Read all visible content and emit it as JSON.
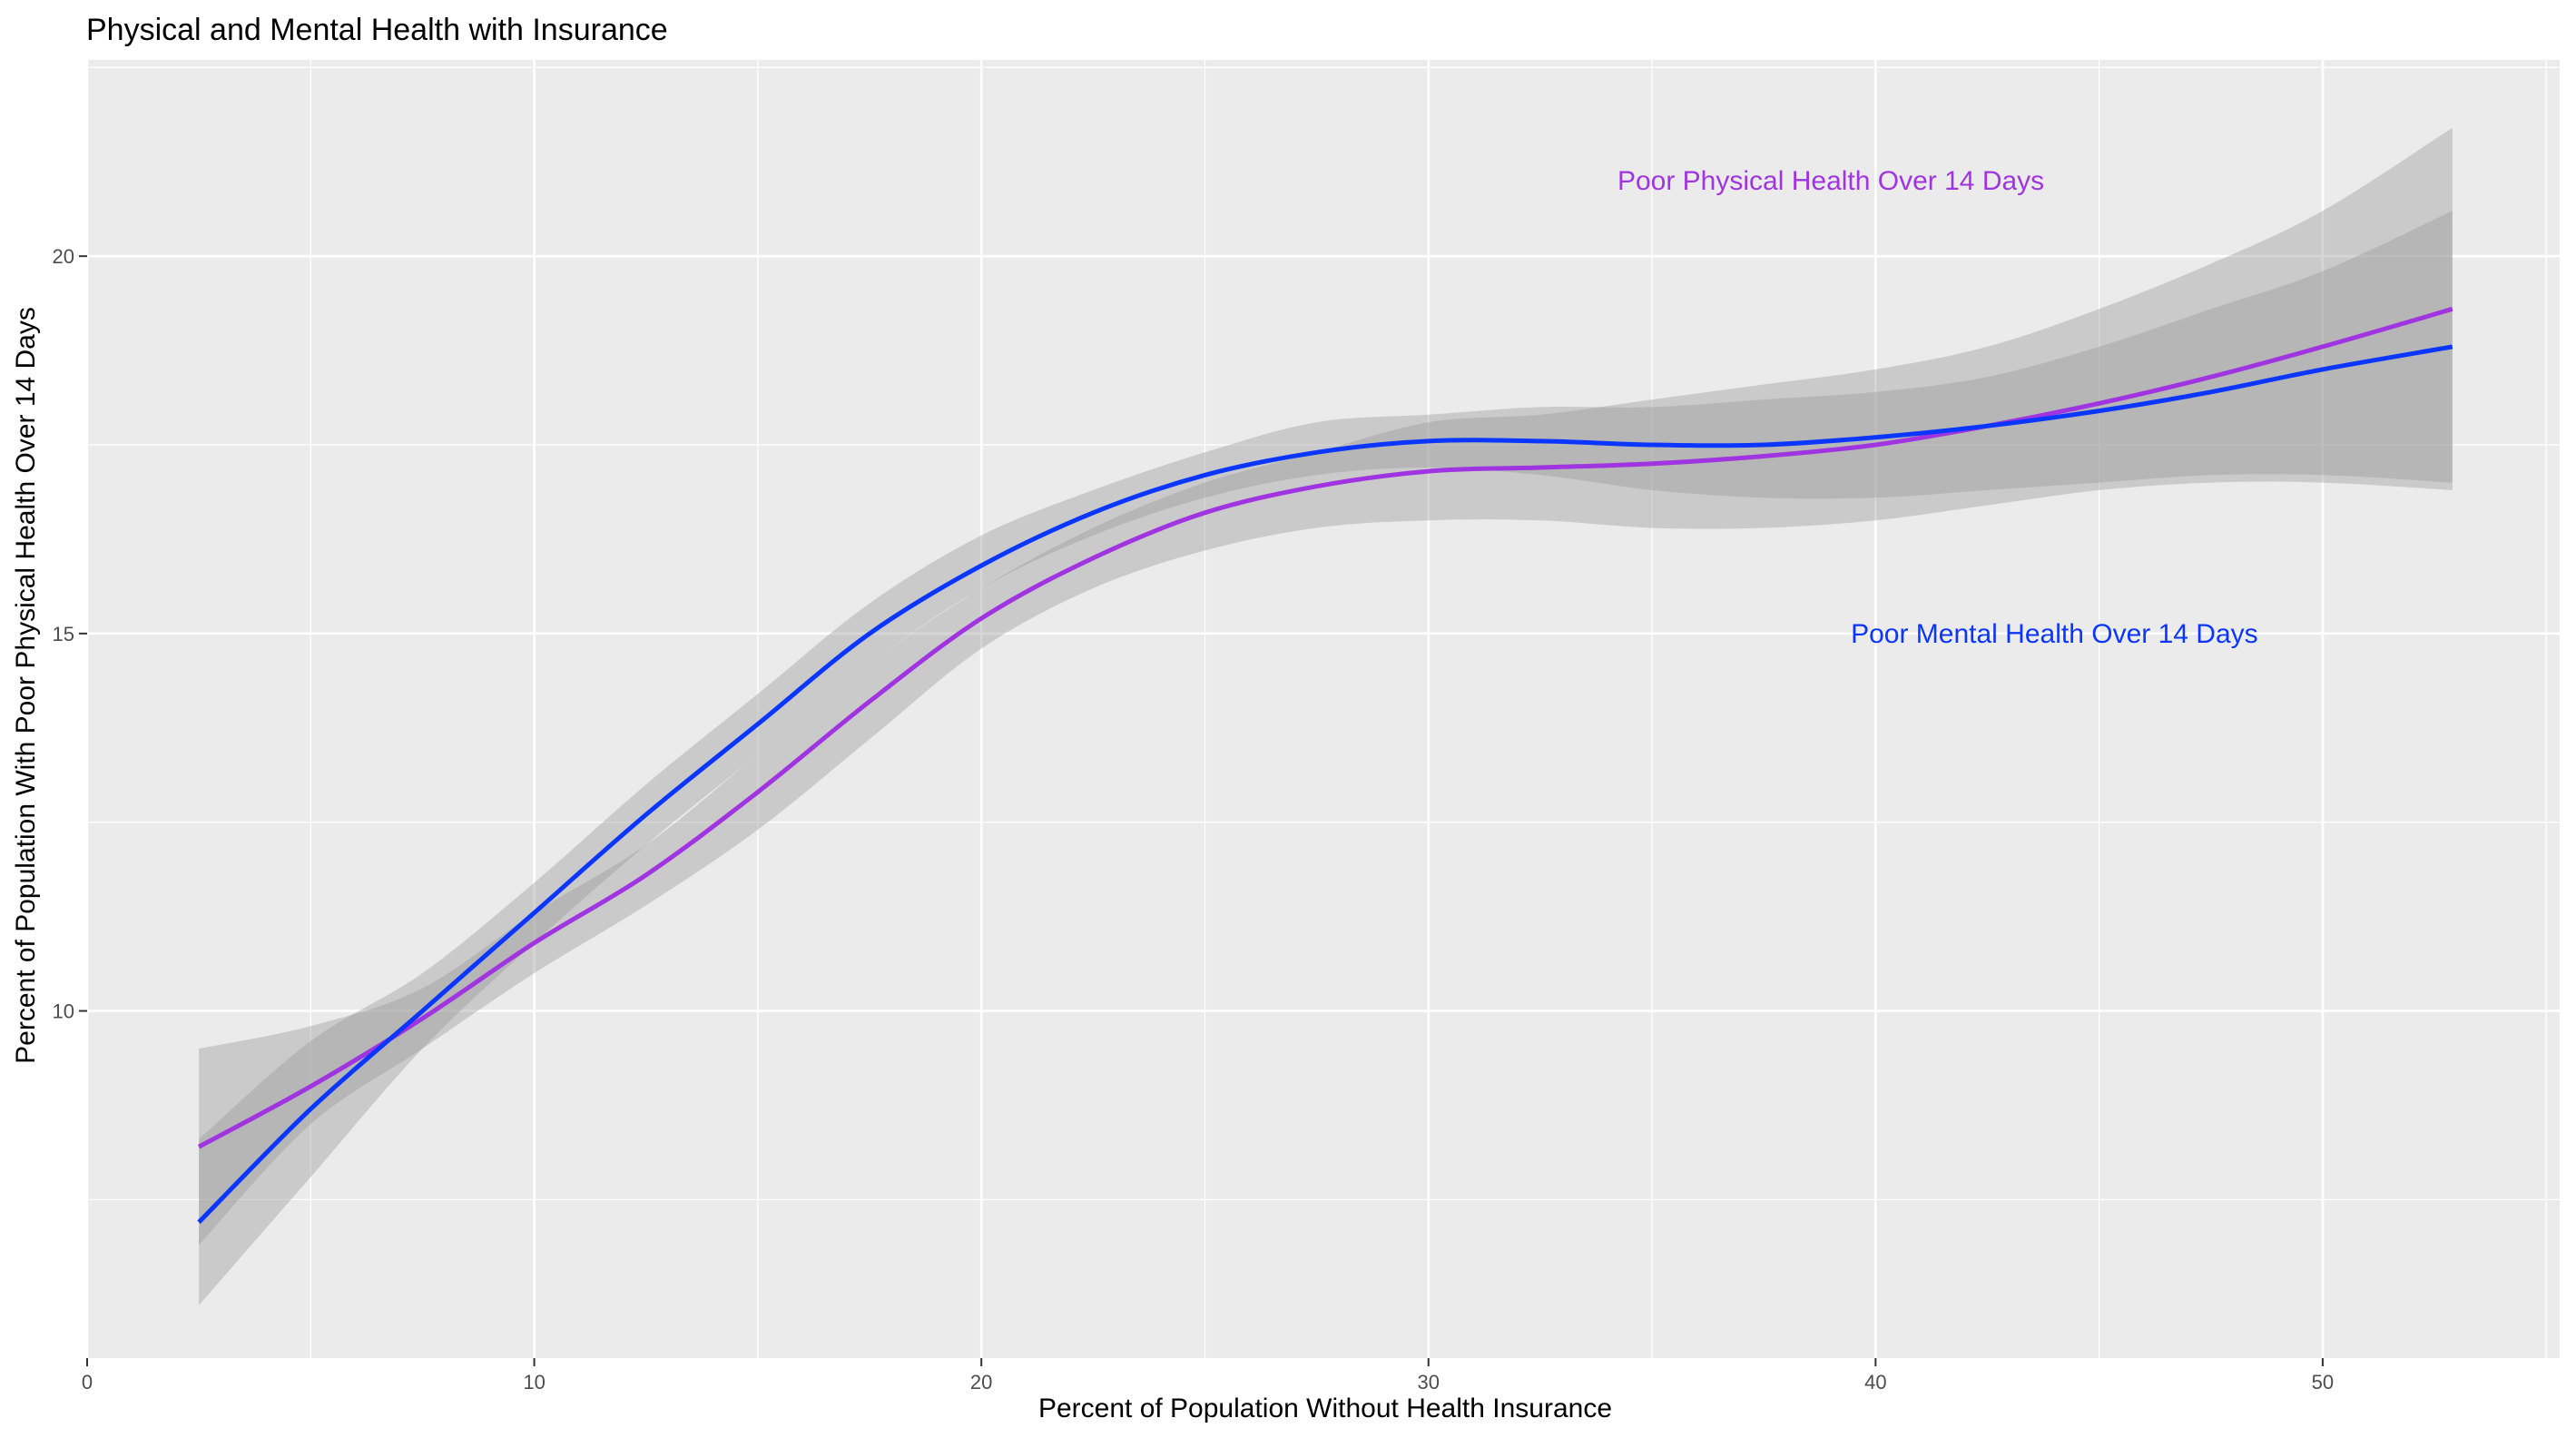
{
  "chart_data": {
    "type": "line",
    "title": "Physical and Mental Health with Insurance",
    "xlabel": "Percent of Population Without Health Insurance",
    "ylabel": "Percent of Population With Poor Physical Health Over 14 Days",
    "xlim": [
      0,
      55.3
    ],
    "ylim": [
      5.4,
      22.6
    ],
    "x_ticks": [
      0,
      10,
      20,
      30,
      40,
      50
    ],
    "y_ticks": [
      10,
      15,
      20
    ],
    "grid": true,
    "legend": "none",
    "colors": {
      "panel": "#ebebeb",
      "grid": "#ffffff",
      "ribbon": "#999999",
      "physical": "#a034e0",
      "mental": "#0a36ff"
    },
    "annotations": [
      {
        "text": "Poor Physical Health Over 14 Days",
        "x": 39,
        "y": 21.0,
        "series": "physical"
      },
      {
        "text": "Poor Mental Health Over 14 Days",
        "x": 44,
        "y": 15.0,
        "series": "mental"
      }
    ],
    "series": [
      {
        "id": "physical",
        "color": "#a034e0",
        "x": [
          2.5,
          5,
          7.5,
          10,
          12.5,
          15,
          17.5,
          20,
          22.5,
          25,
          27.5,
          30,
          32.5,
          35,
          37.5,
          40,
          42.5,
          45,
          47.5,
          50,
          52.9
        ],
        "y": [
          8.2,
          9.0,
          9.9,
          10.9,
          11.8,
          12.9,
          14.1,
          15.2,
          16.0,
          16.6,
          16.95,
          17.15,
          17.2,
          17.25,
          17.35,
          17.5,
          17.75,
          18.05,
          18.4,
          18.8,
          19.3
        ],
        "lower": [
          6.9,
          8.5,
          9.5,
          10.5,
          11.4,
          12.4,
          13.6,
          14.8,
          15.6,
          16.1,
          16.4,
          16.5,
          16.5,
          16.4,
          16.4,
          16.5,
          16.7,
          16.9,
          17.0,
          17.0,
          16.9
        ],
        "upper": [
          9.5,
          9.8,
          10.3,
          11.3,
          12.2,
          13.4,
          14.6,
          15.6,
          16.4,
          17.0,
          17.4,
          17.8,
          17.9,
          18.1,
          18.3,
          18.5,
          18.8,
          19.3,
          19.9,
          20.6,
          21.7
        ]
      },
      {
        "id": "mental",
        "color": "#0a36ff",
        "x": [
          2.5,
          5,
          7.5,
          10,
          12.5,
          15,
          17.5,
          20,
          22.5,
          25,
          27.5,
          30,
          32.5,
          35,
          37.5,
          40,
          42.5,
          45,
          47.5,
          50,
          52.9
        ],
        "y": [
          7.2,
          8.7,
          10.0,
          11.3,
          12.6,
          13.8,
          15.0,
          15.9,
          16.6,
          17.1,
          17.4,
          17.55,
          17.55,
          17.5,
          17.5,
          17.6,
          17.75,
          17.95,
          18.2,
          18.5,
          18.8
        ],
        "lower": [
          6.1,
          7.8,
          9.5,
          10.9,
          12.2,
          13.4,
          14.6,
          15.6,
          16.3,
          16.8,
          17.1,
          17.2,
          17.1,
          16.9,
          16.8,
          16.8,
          16.9,
          17.0,
          17.1,
          17.1,
          17.0
        ],
        "upper": [
          8.3,
          9.6,
          10.5,
          11.7,
          13.0,
          14.2,
          15.4,
          16.3,
          16.9,
          17.4,
          17.8,
          17.9,
          18.0,
          18.0,
          18.1,
          18.2,
          18.4,
          18.8,
          19.3,
          19.8,
          20.6
        ]
      }
    ]
  }
}
